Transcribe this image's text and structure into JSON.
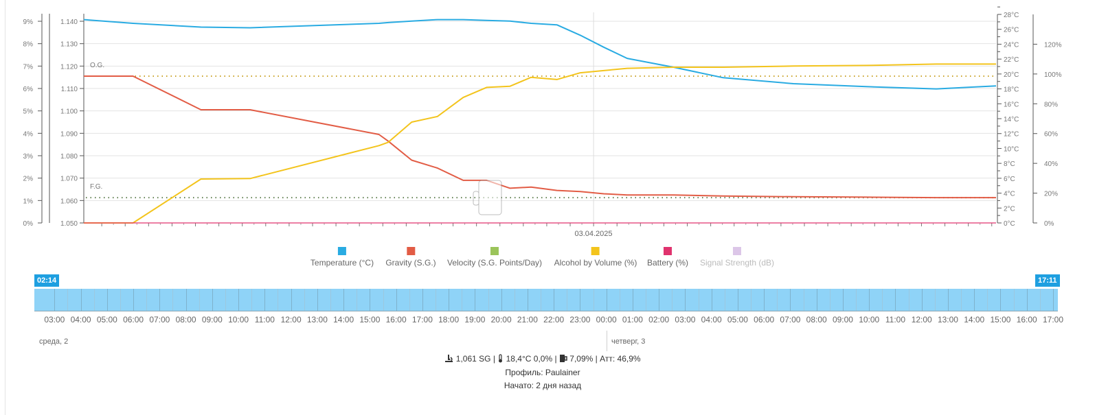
{
  "chart_data": {
    "type": "line",
    "x_start": "02:14",
    "x_end": "17:11",
    "x_label_center": "03.04.2025",
    "axes": {
      "abv": {
        "ticks": [
          "0%",
          "1%",
          "2%",
          "3%",
          "4%",
          "5%",
          "6%",
          "7%",
          "8%",
          "9%"
        ],
        "range": [
          0,
          9
        ]
      },
      "gravity": {
        "ticks": [
          "1.050",
          "1.060",
          "1.070",
          "1.080",
          "1.090",
          "1.100",
          "1.110",
          "1.120",
          "1.130",
          "1.140"
        ],
        "range": [
          1.05,
          1.14
        ]
      },
      "temperature": {
        "ticks": [
          "0°C",
          "2°C",
          "4°C",
          "6°C",
          "8°C",
          "10°C",
          "12°C",
          "14°C",
          "16°C",
          "18°C",
          "20°C",
          "22°C",
          "24°C",
          "26°C",
          "28°C"
        ],
        "range": [
          0,
          28
        ]
      },
      "battery": {
        "ticks": [
          "0%",
          "20%",
          "40%",
          "60%",
          "80%",
          "100%",
          "120%"
        ],
        "range": [
          0,
          140
        ]
      }
    },
    "reference_lines": [
      {
        "label": "O.G.",
        "gravity": 1.1155,
        "color": "#c9a227"
      },
      {
        "label": "F.G.",
        "gravity": 1.0613,
        "color": "#5f7f4f"
      }
    ],
    "x_hours_from_start": [
      0,
      2.1,
      5.0,
      7.1,
      12.6,
      13.0,
      14.0,
      15.1,
      16.2,
      17.2,
      18.2,
      19.1,
      20.2,
      21.2,
      22.2,
      23.2,
      25.2,
      27.3,
      30.3,
      33.4,
      36.4,
      38.95
    ],
    "series": [
      {
        "name": "Temperature (°C)",
        "axis": "temperature",
        "color": "#29abe2",
        "values": [
          27.3,
          26.8,
          26.3,
          26.2,
          26.8,
          26.9,
          27.1,
          27.3,
          27.3,
          27.2,
          27.1,
          26.8,
          26.6,
          25.2,
          23.6,
          22.1,
          20.9,
          19.5,
          18.7,
          18.3,
          18.0,
          18.4
        ]
      },
      {
        "name": "Gravity (S.G.)",
        "axis": "gravity",
        "color": "#e25c45",
        "values": [
          1.1155,
          1.1155,
          1.1005,
          1.1005,
          1.0895,
          1.0865,
          1.078,
          1.0745,
          1.069,
          1.069,
          1.0655,
          1.066,
          1.0645,
          1.064,
          1.063,
          1.0625,
          1.0625,
          1.062,
          1.0617,
          1.0615,
          1.0613,
          1.0613
        ]
      },
      {
        "name": "Velocity (S.G. Points/Day)",
        "axis": "gravity",
        "color": "#9bc45a",
        "values": []
      },
      {
        "name": "Alcohol by Volume (%)",
        "axis": "abv",
        "color": "#f3c41c",
        "values": [
          0.0,
          0.0,
          1.96,
          1.98,
          3.45,
          3.6,
          4.5,
          4.75,
          5.6,
          6.05,
          6.1,
          6.5,
          6.4,
          6.7,
          6.8,
          6.9,
          6.95,
          6.95,
          7.0,
          7.03,
          7.09,
          7.09
        ]
      },
      {
        "name": "Battery (%)",
        "axis": "battery",
        "color": "#e0336e",
        "values": [
          0,
          0,
          0,
          0,
          0,
          0,
          0,
          0,
          0,
          0,
          0,
          0,
          0,
          0,
          0,
          0,
          0,
          0,
          0,
          0,
          0,
          0
        ]
      },
      {
        "name": "Signal Strength (dB)",
        "axis": "battery",
        "color": "#dcc6e8",
        "values": [],
        "hidden": true
      }
    ],
    "legend_position": "bottom",
    "grid": true
  },
  "legend": [
    {
      "label": "Temperature (°C)",
      "color": "#29abe2",
      "enabled": true
    },
    {
      "label": "Gravity (S.G.)",
      "color": "#e25c45",
      "enabled": true
    },
    {
      "label": "Velocity (S.G. Points/Day)",
      "color": "#9bc45a",
      "enabled": true
    },
    {
      "label": "Alcohol by Volume (%)",
      "color": "#f3c41c",
      "enabled": true
    },
    {
      "label": "Battery (%)",
      "color": "#e0336e",
      "enabled": true
    },
    {
      "label": "Signal Strength (dB)",
      "color": "#dcc6e8",
      "enabled": false
    }
  ],
  "timeline": {
    "start_handle": "02:14",
    "end_handle": "17:11",
    "hour_labels": [
      "03:00",
      "04:00",
      "05:00",
      "06:00",
      "07:00",
      "08:00",
      "09:00",
      "10:00",
      "11:00",
      "12:00",
      "13:00",
      "14:00",
      "15:00",
      "16:00",
      "17:00",
      "18:00",
      "19:00",
      "20:00",
      "21:00",
      "22:00",
      "23:00",
      "00:00",
      "01:00",
      "02:00",
      "03:00",
      "04:00",
      "05:00",
      "06:00",
      "07:00",
      "08:00",
      "09:00",
      "10:00",
      "11:00",
      "12:00",
      "13:00",
      "14:00",
      "15:00",
      "16:00",
      "17:00"
    ],
    "day_labels": [
      "среда, 2",
      "четверг, 3"
    ]
  },
  "status": {
    "gravity": "1,061 SG",
    "temperature": "18,4°C 0,0%",
    "abv": "7,09%",
    "attenuation": "Атт: 46,9%",
    "separator": "|",
    "profile": "Профиль: Paulainer",
    "started": "Начато: 2 дня назад"
  }
}
